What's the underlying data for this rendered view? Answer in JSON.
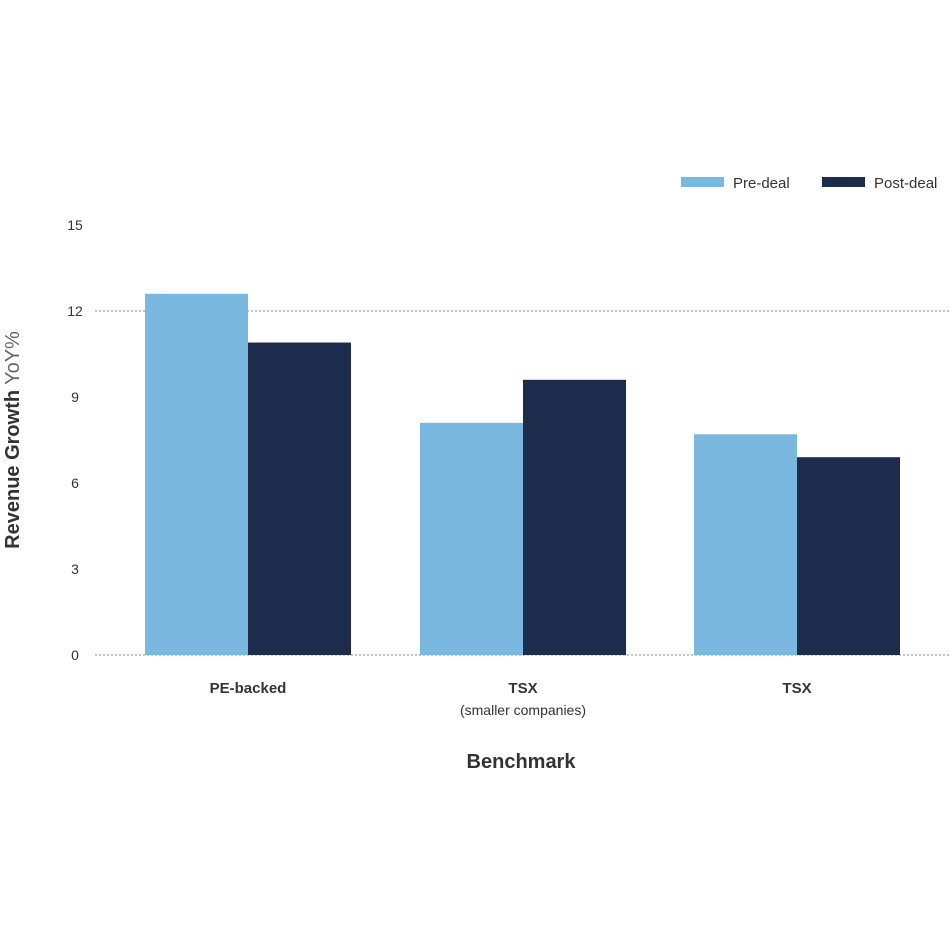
{
  "chart_data": {
    "type": "bar",
    "title": "",
    "xlabel": "Benchmark",
    "ylabel_bold": "Revenue Growth",
    "ylabel_light": "YoY%",
    "ylim": [
      0,
      15
    ],
    "yticks": [
      0,
      3,
      6,
      9,
      12,
      15
    ],
    "gridlines_at": [
      0,
      12
    ],
    "legend_position": "top-right",
    "categories": [
      {
        "line1": "PE-backed",
        "line2": ""
      },
      {
        "line1": "TSX",
        "line2": "(smaller companies)"
      },
      {
        "line1": "TSX",
        "line2": ""
      }
    ],
    "series": [
      {
        "name": "Pre-deal",
        "color": "#7ab8df",
        "values": [
          12.6,
          8.1,
          7.7
        ]
      },
      {
        "name": "Post-deal",
        "color": "#1d2b4c",
        "values": [
          10.9,
          9.6,
          6.9
        ]
      }
    ]
  }
}
